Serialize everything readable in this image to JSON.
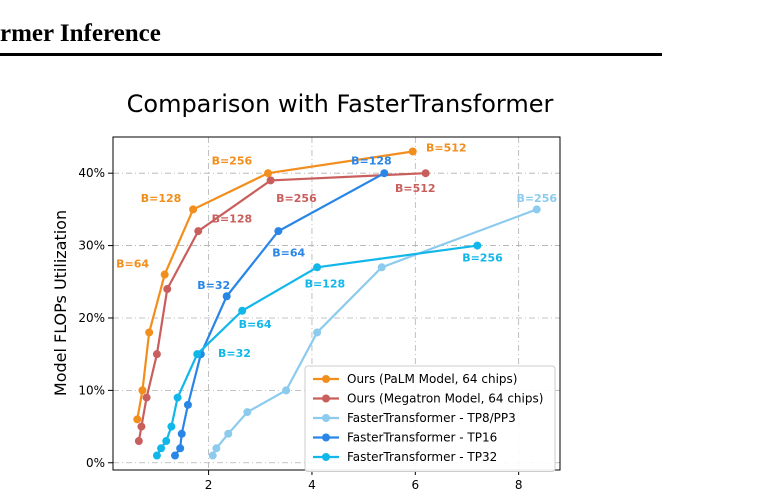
{
  "page": {
    "heading": "rmer Inference"
  },
  "chart_data": {
    "type": "line",
    "title": "Comparison with FasterTransformer",
    "xlabel": "",
    "ylabel": "Model FLOPs Utilization",
    "xlim": [
      0.15,
      8.8
    ],
    "ylim": [
      -1,
      45
    ],
    "xticks": [
      2,
      4,
      6,
      8
    ],
    "yticks": [
      0,
      10,
      20,
      30,
      40
    ],
    "ytick_labels": [
      "0%",
      "10%",
      "20%",
      "30%",
      "40%"
    ],
    "grid": true,
    "legend_position": "lower-right",
    "series": [
      {
        "name": "Ours (PaLM Model, 64 chips)",
        "color": "#f28e1c",
        "x": [
          0.62,
          0.72,
          0.85,
          1.15,
          1.7,
          3.15,
          5.95
        ],
        "y": [
          6,
          10,
          18,
          26,
          35,
          40,
          43
        ]
      },
      {
        "name": "Ours (Megatron Model, 64 chips)",
        "color": "#c95f5c",
        "x": [
          0.65,
          0.7,
          0.8,
          1.0,
          1.2,
          1.8,
          3.2,
          6.2
        ],
        "y": [
          3,
          5,
          9,
          15,
          24,
          32,
          39,
          40
        ]
      },
      {
        "name": "FasterTransformer - TP8/PP3",
        "color": "#8ccbee",
        "x": [
          2.08,
          2.15,
          2.38,
          2.75,
          3.5,
          4.1,
          5.35,
          8.35
        ],
        "y": [
          1,
          2,
          4,
          7,
          10,
          18,
          27,
          35
        ]
      },
      {
        "name": "FasterTransformer - TP16",
        "color": "#2a86e6",
        "x": [
          1.35,
          1.45,
          1.48,
          1.6,
          1.85,
          2.35,
          3.35,
          5.4
        ],
        "y": [
          1,
          2,
          4,
          8,
          15,
          23,
          32,
          40
        ]
      },
      {
        "name": "FasterTransformer - TP32",
        "color": "#12b7ea",
        "x": [
          1.0,
          1.08,
          1.18,
          1.28,
          1.4,
          1.78,
          2.65,
          4.1,
          7.2
        ],
        "y": [
          1,
          2,
          3,
          5,
          9,
          15,
          21,
          27,
          30
        ]
      }
    ],
    "annotations": [
      {
        "text": "B=512",
        "x": 6.6,
        "y": 43.0,
        "color": "#f28e1c"
      },
      {
        "text": "B=256",
        "x": 2.45,
        "y": 41.2,
        "color": "#f28e1c"
      },
      {
        "text": "B=128",
        "x": 1.08,
        "y": 36.0,
        "color": "#f28e1c"
      },
      {
        "text": "B=64",
        "x": 0.53,
        "y": 27.0,
        "color": "#f28e1c"
      },
      {
        "text": "B=512",
        "x": 6.0,
        "y": 37.4,
        "color": "#c95f5c"
      },
      {
        "text": "B=256",
        "x": 3.7,
        "y": 36.0,
        "color": "#c95f5c"
      },
      {
        "text": "B=128",
        "x": 2.45,
        "y": 33.2,
        "color": "#c95f5c"
      },
      {
        "text": "B=128",
        "x": 5.15,
        "y": 41.2,
        "color": "#2a86e6"
      },
      {
        "text": "B=64",
        "x": 3.55,
        "y": 28.5,
        "color": "#2a86e6"
      },
      {
        "text": "B=32",
        "x": 2.1,
        "y": 24.0,
        "color": "#2a86e6"
      },
      {
        "text": "B=256",
        "x": 8.35,
        "y": 36.0,
        "color": "#8ccbee"
      },
      {
        "text": "B=256",
        "x": 7.3,
        "y": 27.8,
        "color": "#12b7ea"
      },
      {
        "text": "B=128",
        "x": 4.25,
        "y": 24.2,
        "color": "#12b7ea"
      },
      {
        "text": "B=64",
        "x": 2.9,
        "y": 18.6,
        "color": "#12b7ea"
      },
      {
        "text": "B=32",
        "x": 2.5,
        "y": 14.6,
        "color": "#12b7ea"
      }
    ]
  }
}
